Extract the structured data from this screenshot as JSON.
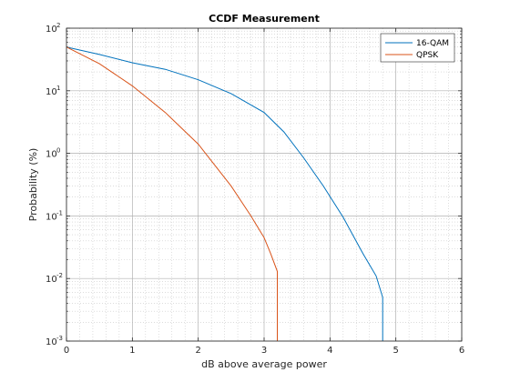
{
  "chart_data": {
    "type": "line",
    "title": "CCDF Measurement",
    "xlabel": "dB above average power",
    "ylabel": "Probability (%)",
    "x_scale": "linear",
    "y_scale": "log",
    "xlim": [
      0,
      6
    ],
    "ylim": [
      0.001,
      100
    ],
    "grid": "major and minor, dotted",
    "legend_position": "top-right",
    "x_ticks": [
      "0",
      "1",
      "2",
      "3",
      "4",
      "5",
      "6"
    ],
    "y_ticks": [
      {
        "base": "10",
        "exp": "-3",
        "value": 0.001
      },
      {
        "base": "10",
        "exp": "-2",
        "value": 0.01
      },
      {
        "base": "10",
        "exp": "-1",
        "value": 0.1
      },
      {
        "base": "10",
        "exp": "0",
        "value": 1
      },
      {
        "base": "10",
        "exp": "1",
        "value": 10
      },
      {
        "base": "10",
        "exp": "2",
        "value": 100
      }
    ],
    "series": [
      {
        "name": "16-QAM",
        "color": "#0072bd",
        "x": [
          0,
          0.5,
          1.0,
          1.5,
          2.0,
          2.5,
          3.0,
          3.3,
          3.6,
          3.9,
          4.2,
          4.5,
          4.7,
          4.8,
          4.8
        ],
        "y": [
          50,
          38,
          28,
          22,
          15,
          9,
          4.5,
          2.2,
          0.85,
          0.3,
          0.095,
          0.025,
          0.011,
          0.005,
          0.001
        ]
      },
      {
        "name": "QPSK",
        "color": "#d95319",
        "x": [
          0,
          0.5,
          1.0,
          1.5,
          2.0,
          2.5,
          2.8,
          3.0,
          3.1,
          3.2,
          3.2
        ],
        "y": [
          50,
          27,
          12,
          4.5,
          1.4,
          0.3,
          0.1,
          0.045,
          0.025,
          0.013,
          0.001
        ]
      }
    ]
  }
}
